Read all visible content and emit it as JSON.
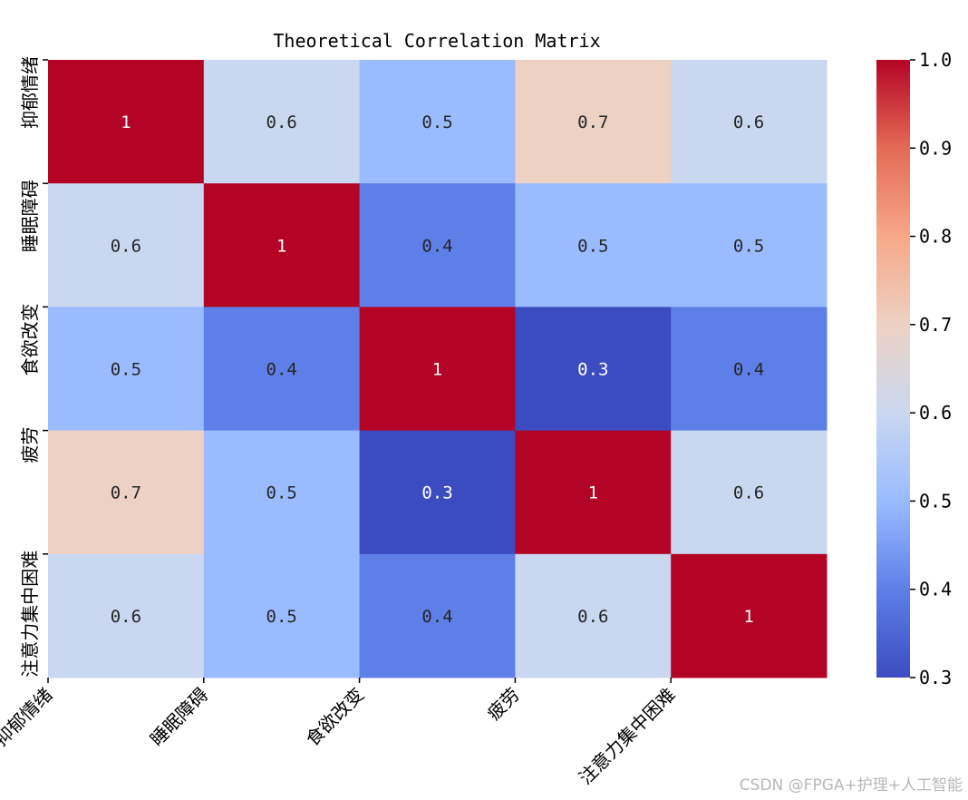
{
  "chart_data": {
    "type": "heatmap",
    "title": "Theoretical Correlation Matrix",
    "x_labels": [
      "抑郁情绪",
      "睡眠障碍",
      "食欲改变",
      "疲劳",
      "注意力集中困难"
    ],
    "y_labels": [
      "抑郁情绪",
      "睡眠障碍",
      "食欲改变",
      "疲劳",
      "注意力集中困难"
    ],
    "values": [
      [
        1,
        0.6,
        0.5,
        0.7,
        0.6
      ],
      [
        0.6,
        1,
        0.4,
        0.5,
        0.5
      ],
      [
        0.5,
        0.4,
        1,
        0.3,
        0.4
      ],
      [
        0.7,
        0.5,
        0.3,
        1,
        0.6
      ],
      [
        0.6,
        0.5,
        0.4,
        0.6,
        1
      ]
    ],
    "colormap": "coolwarm",
    "vmin": 0.3,
    "vmax": 1.0,
    "colorbar_ticks": [
      "0.3",
      "0.4",
      "0.5",
      "0.6",
      "0.7",
      "0.8",
      "0.9",
      "1.0"
    ],
    "annotations": true,
    "xlabel": "",
    "ylabel": ""
  },
  "watermark": "CSDN @FPGA+护理+人工智能"
}
